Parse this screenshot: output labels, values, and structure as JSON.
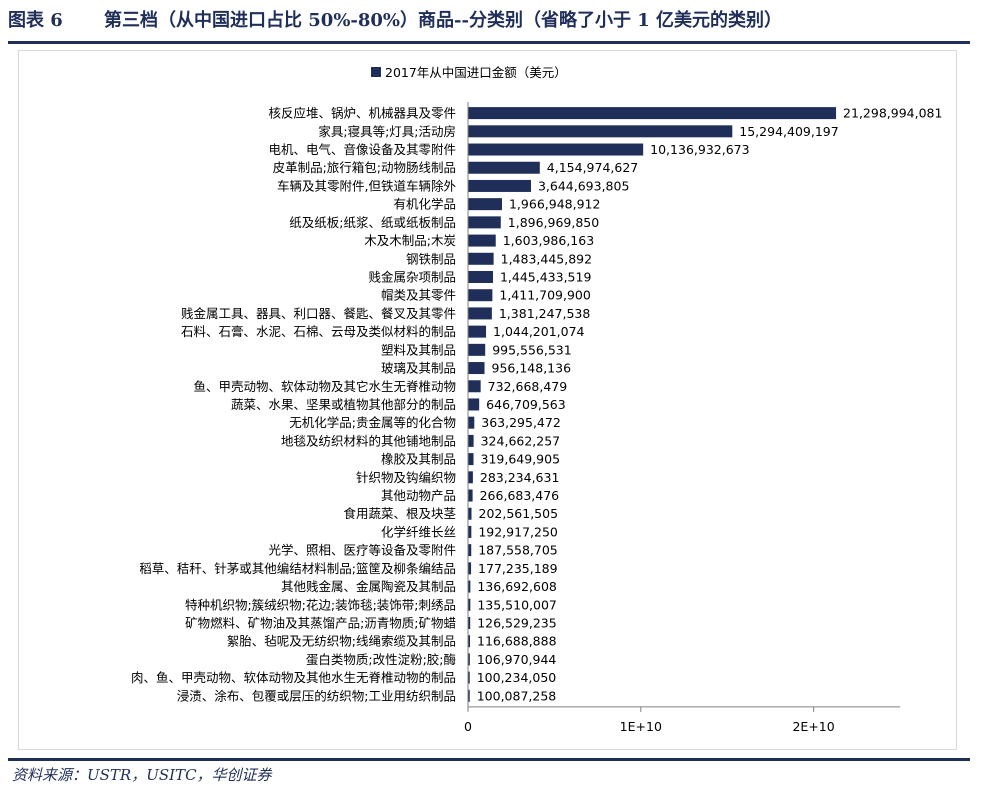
{
  "header": {
    "figure_number": "图表 6",
    "title": "第三档（从中国进口占比 50%-80%）商品--分类别（省略了小于 1 亿美元的类别）"
  },
  "footer": {
    "source": "资料来源：USTR，USITC，华创证券"
  },
  "colors": {
    "bar": "#1f2f5a",
    "accent": "#1f2f5a",
    "gridline": "#d9d9d9"
  },
  "chart_data": {
    "type": "bar",
    "orientation": "horizontal",
    "title": "",
    "xlabel": "",
    "ylabel": "",
    "legend": {
      "label": "2017年从中国进口金额（美元）",
      "position": "top"
    },
    "xlim": [
      0,
      25000000000
    ],
    "x_ticks": [
      0,
      10000000000,
      20000000000
    ],
    "x_tick_labels": [
      "0",
      "1E+10",
      "2E+10"
    ],
    "grid": false,
    "categories": [
      "核反应堆、锅炉、机械器具及零件",
      "家具;寝具等;灯具;活动房",
      "电机、电气、音像设备及其零附件",
      "皮革制品;旅行箱包;动物肠线制品",
      "车辆及其零附件,但铁道车辆除外",
      "有机化学品",
      "纸及纸板;纸浆、纸或纸板制品",
      "木及木制品;木炭",
      "钢铁制品",
      "贱金属杂项制品",
      "帽类及其零件",
      "贱金属工具、器具、利口器、餐匙、餐叉及其零件",
      "石料、石膏、水泥、石棉、云母及类似材料的制品",
      "塑料及其制品",
      "玻璃及其制品",
      "鱼、甲壳动物、软体动物及其它水生无脊椎动物",
      "蔬菜、水果、坚果或植物其他部分的制品",
      "无机化学品;贵金属等的化合物",
      "地毯及纺织材料的其他铺地制品",
      "橡胶及其制品",
      "针织物及钩编织物",
      "其他动物产品",
      "食用蔬菜、根及块茎",
      "化学纤维长丝",
      "光学、照相、医疗等设备及零附件",
      "稻草、秸秆、针茅或其他编结材料制品;篮筐及柳条编结品",
      "其他贱金属、金属陶瓷及其制品",
      "特种机织物;簇绒织物;花边;装饰毯;装饰带;刺绣品",
      "矿物燃料、矿物油及其蒸馏产品;沥青物质;矿物蜡",
      "絮胎、毡呢及无纺织物;线绳索缆及其制品",
      "蛋白类物质;改性淀粉;胶;酶",
      "肉、鱼、甲壳动物、软体动物及其他水生无脊椎动物的制品",
      "浸渍、涂布、包覆或层压的纺织物;工业用纺织制品"
    ],
    "values": [
      21298994081,
      15294409197,
      10136932673,
      4154974627,
      3644693805,
      1966948912,
      1896969850,
      1603986163,
      1483445892,
      1445433519,
      1411709900,
      1381247538,
      1044201074,
      995556531,
      956148136,
      732668479,
      646709563,
      363295472,
      324662257,
      319649905,
      283234631,
      266683476,
      202561505,
      192917250,
      187558705,
      177235189,
      136692608,
      135510007,
      126529235,
      116688888,
      106970944,
      100234050,
      100087258
    ],
    "value_labels": [
      "21,298,994,081",
      "15,294,409,197",
      "10,136,932,673",
      "4,154,974,627",
      "3,644,693,805",
      "1,966,948,912",
      "1,896,969,850",
      "1,603,986,163",
      "1,483,445,892",
      "1,445,433,519",
      "1,411,709,900",
      "1,381,247,538",
      "1,044,201,074",
      "995,556,531",
      "956,148,136",
      "732,668,479",
      "646,709,563",
      "363,295,472",
      "324,662,257",
      "319,649,905",
      "283,234,631",
      "266,683,476",
      "202,561,505",
      "192,917,250",
      "187,558,705",
      "177,235,189",
      "136,692,608",
      "135,510,007",
      "126,529,235",
      "116,688,888",
      "106,970,944",
      "100,234,050",
      "100,087,258"
    ]
  }
}
